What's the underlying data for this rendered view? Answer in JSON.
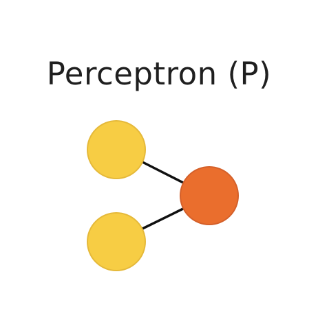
{
  "diagram": {
    "title": "Perceptron (P)",
    "colors": {
      "input_fill": "#F7CD44",
      "input_stroke": "#E5B93A",
      "output_fill": "#EA6E2D",
      "output_stroke": "#D4602A",
      "edge": "#111111",
      "title_text": "#1F1F1F"
    },
    "nodes": [
      {
        "id": "input-1",
        "role": "input"
      },
      {
        "id": "input-2",
        "role": "input"
      },
      {
        "id": "output",
        "role": "output"
      }
    ],
    "edges": [
      {
        "from": "input-1",
        "to": "output"
      },
      {
        "from": "input-2",
        "to": "output"
      }
    ]
  }
}
